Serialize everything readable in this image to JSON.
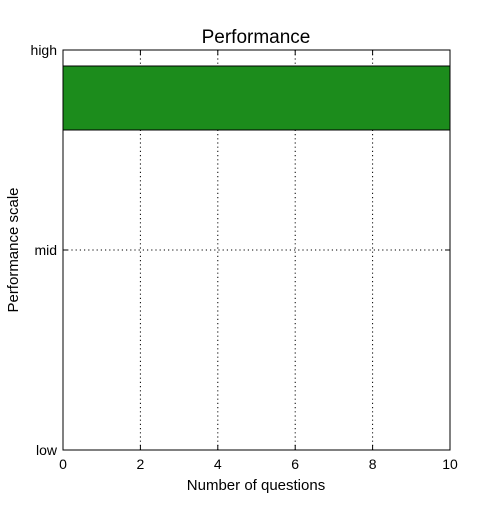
{
  "chart_data": {
    "type": "bar",
    "orientation": "horizontal",
    "title": "Performance",
    "xlabel": "Number of questions",
    "ylabel": "Performance scale",
    "categories": [
      "low",
      "mid",
      "high"
    ],
    "values": [
      0,
      0,
      10
    ],
    "xlim": [
      0,
      10
    ],
    "x_ticks": [
      "0",
      "2",
      "4",
      "6",
      "8",
      "10"
    ],
    "bar_color": "#1c8c1c",
    "grid": true,
    "legend": "none"
  }
}
